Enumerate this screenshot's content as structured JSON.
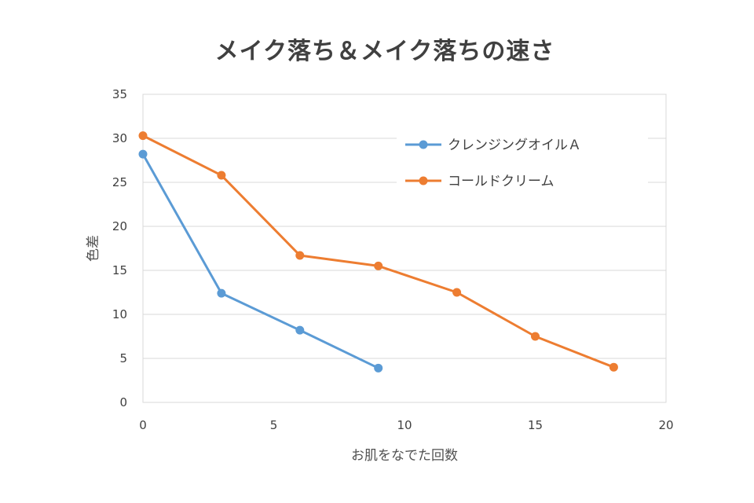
{
  "chart_data": {
    "type": "line",
    "title": "メイク落ち＆メイク落ちの速さ",
    "xlabel": "お肌をなでた回数",
    "ylabel": "色差",
    "xlim": [
      0,
      20
    ],
    "ylim": [
      0,
      35
    ],
    "xticks": [
      0,
      5,
      10,
      15,
      20
    ],
    "yticks": [
      0,
      5,
      10,
      15,
      20,
      25,
      30,
      35
    ],
    "grid": true,
    "legend_position": "top-right",
    "series": [
      {
        "name": "クレンジングオイルＡ",
        "color": "#5b9bd5",
        "x": [
          0,
          3,
          6,
          9
        ],
        "y": [
          28.2,
          12.4,
          8.2,
          3.9
        ]
      },
      {
        "name": "コールドクリーム",
        "color": "#ed7d31",
        "x": [
          0,
          3,
          6,
          9,
          12,
          15,
          18
        ],
        "y": [
          30.3,
          25.8,
          16.7,
          15.5,
          12.5,
          7.5,
          4.0
        ]
      }
    ]
  }
}
